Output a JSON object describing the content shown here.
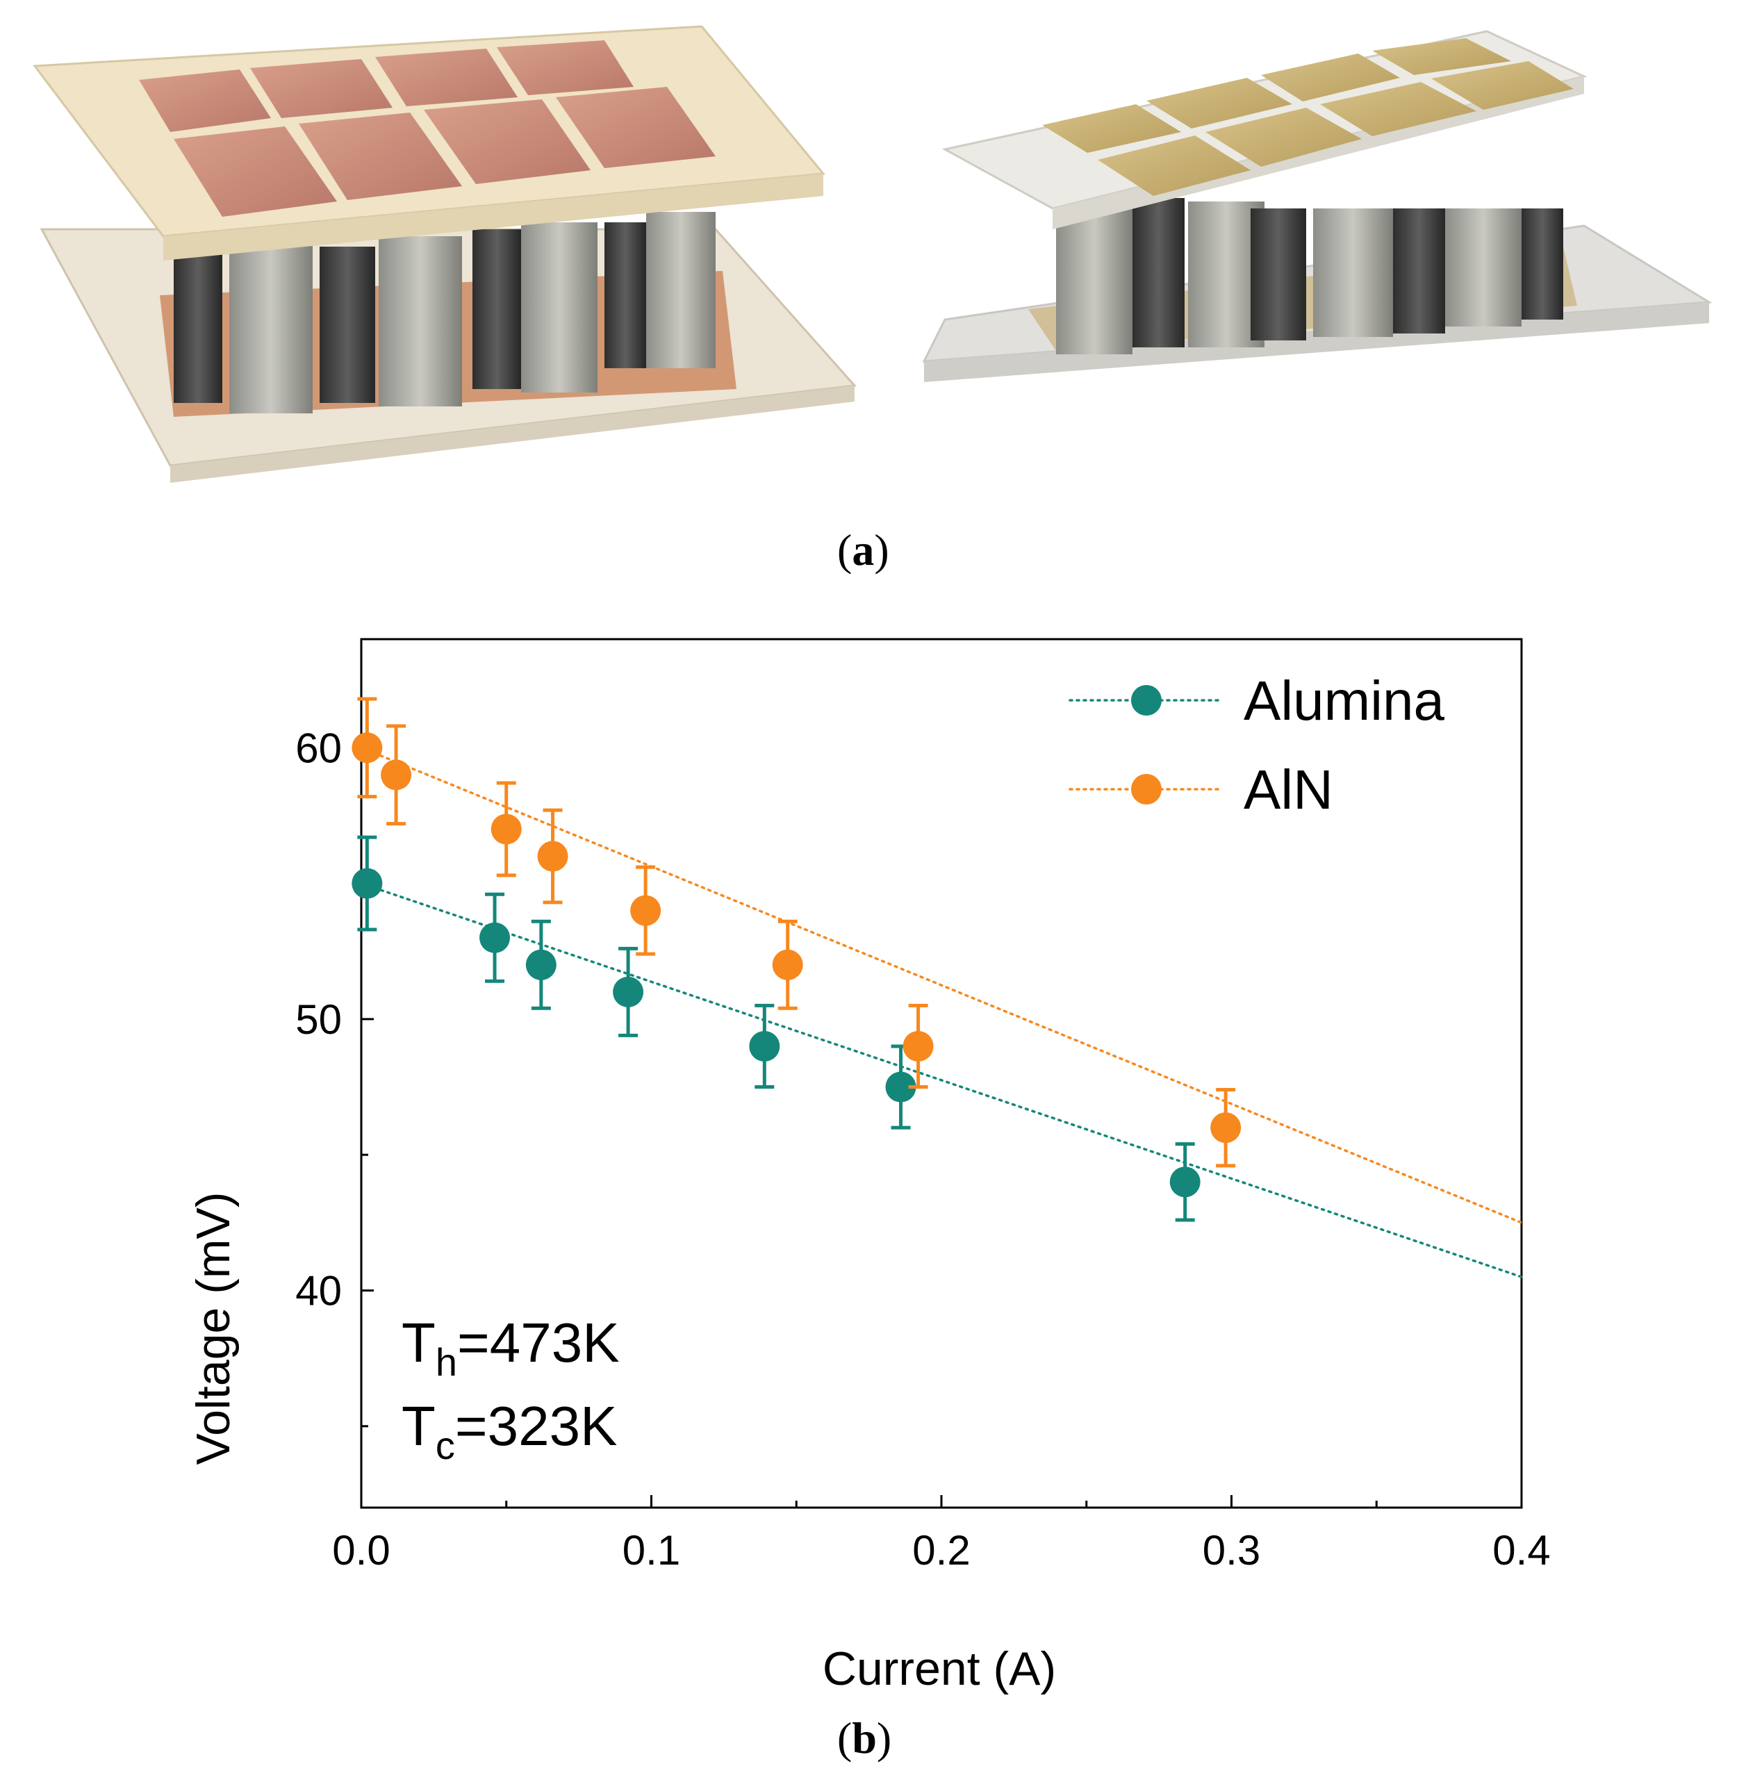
{
  "panel_a": {
    "label_open": "(",
    "label_letter": "a",
    "label_close": ")"
  },
  "panel_b": {
    "label_open": "(",
    "label_letter": "b",
    "label_close": ")"
  },
  "colors": {
    "alumina": "#14877a",
    "aln": "#f7881e",
    "axis": "#000000"
  },
  "chart_data": {
    "type": "scatter",
    "xlabel": "Current (A)",
    "ylabel": "Voltage (mV)",
    "xlim": [
      0.0,
      0.4
    ],
    "ylim": [
      32,
      64
    ],
    "xticks": [
      0.0,
      0.1,
      0.2,
      0.3,
      0.4
    ],
    "xtick_labels": [
      "0.0",
      "0.1",
      "0.2",
      "0.3",
      "0.4"
    ],
    "yticks": [
      40,
      50,
      60
    ],
    "ytick_labels": [
      "40",
      "50",
      "60"
    ],
    "legend_position": "top-right",
    "annotations": [
      {
        "main": "T",
        "sub": "h",
        "rest": "=473K"
      },
      {
        "main": "T",
        "sub": "c",
        "rest": "=323K"
      }
    ],
    "series": [
      {
        "name": "Alumina",
        "x": [
          0.002,
          0.046,
          0.062,
          0.092,
          0.139,
          0.186,
          0.284
        ],
        "y": [
          55,
          53,
          52,
          51,
          49,
          47.5,
          44
        ],
        "err": [
          1.7,
          1.6,
          1.6,
          1.6,
          1.5,
          1.5,
          1.4
        ],
        "fit": {
          "x": [
            0.0,
            0.4
          ],
          "y": [
            55,
            40.5
          ]
        }
      },
      {
        "name": "AlN",
        "x": [
          0.002,
          0.012,
          0.05,
          0.066,
          0.098,
          0.147,
          0.192,
          0.298
        ],
        "y": [
          60,
          59,
          57,
          56,
          54,
          52,
          49,
          46
        ],
        "err": [
          1.8,
          1.8,
          1.7,
          1.7,
          1.6,
          1.6,
          1.5,
          1.4
        ],
        "fit": {
          "x": [
            0.0,
            0.4
          ],
          "y": [
            60,
            42.5
          ]
        }
      }
    ]
  }
}
